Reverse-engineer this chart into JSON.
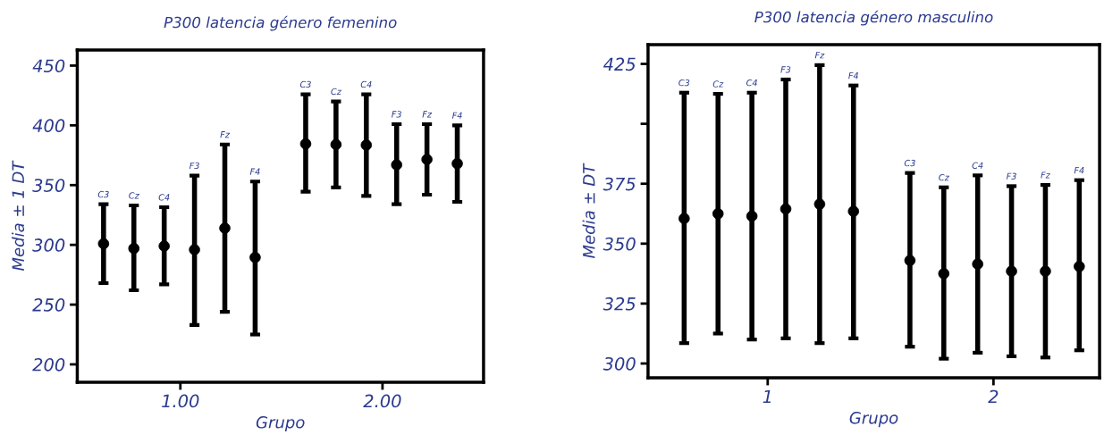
{
  "chart_data": [
    {
      "type": "scatter",
      "title": "P300 latencia género femenino",
      "xlabel": "Grupo",
      "ylabel": "Media ± 1 DT",
      "x": [
        0.62,
        0.77,
        0.92,
        1.07,
        1.22,
        1.37,
        1.62,
        1.77,
        1.92,
        2.07,
        2.22,
        2.37
      ],
      "series": [
        {
          "color": "#000000",
          "values": [
            301,
            297,
            299,
            296,
            314,
            289.5,
            384.5,
            384,
            383.5,
            367,
            371.5,
            368
          ],
          "errors": [
            [
              268,
              334
            ],
            [
              262,
              333
            ],
            [
              267,
              331.5
            ],
            [
              233,
              358
            ],
            [
              244,
              384
            ],
            [
              225,
              353
            ],
            [
              344.5,
              426
            ],
            [
              348,
              420
            ],
            [
              341,
              426
            ],
            [
              334,
              401
            ],
            [
              342,
              401
            ],
            [
              336,
              400
            ]
          ]
        }
      ],
      "annotations": [
        {
          "text": "C3",
          "x": 0.62,
          "y": 334
        },
        {
          "text": "Cz",
          "x": 0.77,
          "y": 333
        },
        {
          "text": "C4",
          "x": 0.92,
          "y": 331.5
        },
        {
          "text": "F3",
          "x": 1.07,
          "y": 358
        },
        {
          "text": "Fz",
          "x": 1.22,
          "y": 384
        },
        {
          "text": "F4",
          "x": 1.37,
          "y": 353
        },
        {
          "text": "C3",
          "x": 1.62,
          "y": 426
        },
        {
          "text": "Cz",
          "x": 1.77,
          "y": 420
        },
        {
          "text": "C4",
          "x": 1.92,
          "y": 426
        },
        {
          "text": "F3",
          "x": 2.07,
          "y": 401
        },
        {
          "text": "Fz",
          "x": 2.22,
          "y": 401
        },
        {
          "text": "F4",
          "x": 2.37,
          "y": 400
        }
      ],
      "xlim": [
        0.49,
        2.5
      ],
      "ylim": [
        185,
        463
      ],
      "xticks": [
        {
          "value": 1,
          "label": "1.00"
        },
        {
          "value": 2,
          "label": "2.00"
        }
      ],
      "yticks": [
        200,
        250,
        300,
        350,
        400,
        450
      ],
      "marker": "circle",
      "grid": false,
      "legend": false
    },
    {
      "type": "scatter",
      "title": "P300 latencia género masculino",
      "xlabel": "Grupo",
      "ylabel": "Media ± DT",
      "x": [
        0.63,
        0.78,
        0.93,
        1.08,
        1.23,
        1.38,
        1.63,
        1.78,
        1.93,
        2.08,
        2.23,
        2.38
      ],
      "series": [
        {
          "color": "#000000",
          "values": [
            360.5,
            362.5,
            361.5,
            364.5,
            366.5,
            363.5,
            343,
            337.5,
            341.5,
            338.5,
            338.5,
            340.5
          ],
          "errors": [
            [
              308.5,
              413
            ],
            [
              312.5,
              412.5
            ],
            [
              310,
              413
            ],
            [
              310.5,
              418.5
            ],
            [
              308.5,
              424.5
            ],
            [
              310.5,
              416
            ],
            [
              307,
              379.5
            ],
            [
              302,
              373.5
            ],
            [
              304.5,
              378.5
            ],
            [
              303,
              374
            ],
            [
              302.5,
              374.5
            ],
            [
              305.5,
              376.5
            ]
          ]
        }
      ],
      "annotations": [
        {
          "text": "C3",
          "x": 0.63,
          "y": 413
        },
        {
          "text": "Cz",
          "x": 0.78,
          "y": 412.5
        },
        {
          "text": "C4",
          "x": 0.93,
          "y": 413
        },
        {
          "text": "F3",
          "x": 1.08,
          "y": 418.5
        },
        {
          "text": "Fz",
          "x": 1.23,
          "y": 424.5
        },
        {
          "text": "F4",
          "x": 1.38,
          "y": 416
        },
        {
          "text": "C3",
          "x": 1.63,
          "y": 379.5
        },
        {
          "text": "Cz",
          "x": 1.78,
          "y": 373.5
        },
        {
          "text": "C4",
          "x": 1.93,
          "y": 378.5
        },
        {
          "text": "F3",
          "x": 2.08,
          "y": 374
        },
        {
          "text": "Fz",
          "x": 2.23,
          "y": 374.5
        },
        {
          "text": "F4",
          "x": 2.38,
          "y": 376.5
        }
      ],
      "xlim": [
        0.47,
        2.47
      ],
      "ylim": [
        294,
        433
      ],
      "xticks": [
        1,
        2
      ],
      "yticks": [
        300,
        325,
        350,
        375,
        {
          "value": 400,
          "label": null
        },
        425
      ],
      "marker": "circle",
      "grid": false,
      "legend": false
    }
  ]
}
